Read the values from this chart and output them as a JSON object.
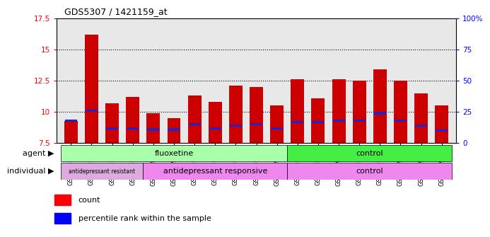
{
  "title": "GDS5307 / 1421159_at",
  "samples": [
    "GSM1059591",
    "GSM1059592",
    "GSM1059593",
    "GSM1059594",
    "GSM1059577",
    "GSM1059578",
    "GSM1059579",
    "GSM1059580",
    "GSM1059581",
    "GSM1059582",
    "GSM1059583",
    "GSM1059561",
    "GSM1059562",
    "GSM1059563",
    "GSM1059564",
    "GSM1059565",
    "GSM1059566",
    "GSM1059567",
    "GSM1059568"
  ],
  "bar_heights": [
    9.3,
    16.2,
    10.7,
    11.2,
    9.9,
    9.5,
    11.3,
    10.8,
    12.1,
    12.0,
    10.5,
    12.6,
    11.1,
    12.6,
    12.5,
    13.4,
    12.5,
    11.5,
    10.5
  ],
  "blue_positions": [
    9.3,
    10.1,
    8.7,
    8.7,
    8.6,
    8.6,
    9.0,
    8.7,
    8.9,
    9.0,
    8.7,
    9.2,
    9.2,
    9.3,
    9.3,
    9.9,
    9.3,
    8.9,
    8.5
  ],
  "ymin": 7.5,
  "ymax": 17.5,
  "yticks": [
    7.5,
    10.0,
    12.5,
    15.0,
    17.5
  ],
  "ytick_labels": [
    "7.5",
    "10",
    "12.5",
    "15",
    "17.5"
  ],
  "right_ytick_labels": [
    "0",
    "25",
    "50",
    "75",
    "100%"
  ],
  "bar_color": "#cc0000",
  "blue_color": "#2222cc",
  "bar_width": 0.65,
  "plot_bg_color": "#e8e8e8",
  "agent_fluoxetine_color": "#aaffaa",
  "agent_control_color": "#44ee44",
  "individual_resistant_color": "#ddaadd",
  "individual_responsive_color": "#ee88ee",
  "individual_control_color": "#ee88ee",
  "label_agent": "agent",
  "label_individual": "individual",
  "label_fluoxetine": "fluoxetine",
  "label_control_agent": "control",
  "label_resistant": "antidepressant resistant",
  "label_responsive": "antidepressant responsive",
  "label_control_individual": "control",
  "legend_count": "count",
  "legend_percentile": "percentile rank within the sample",
  "n_fluox": 11,
  "n_total": 19
}
